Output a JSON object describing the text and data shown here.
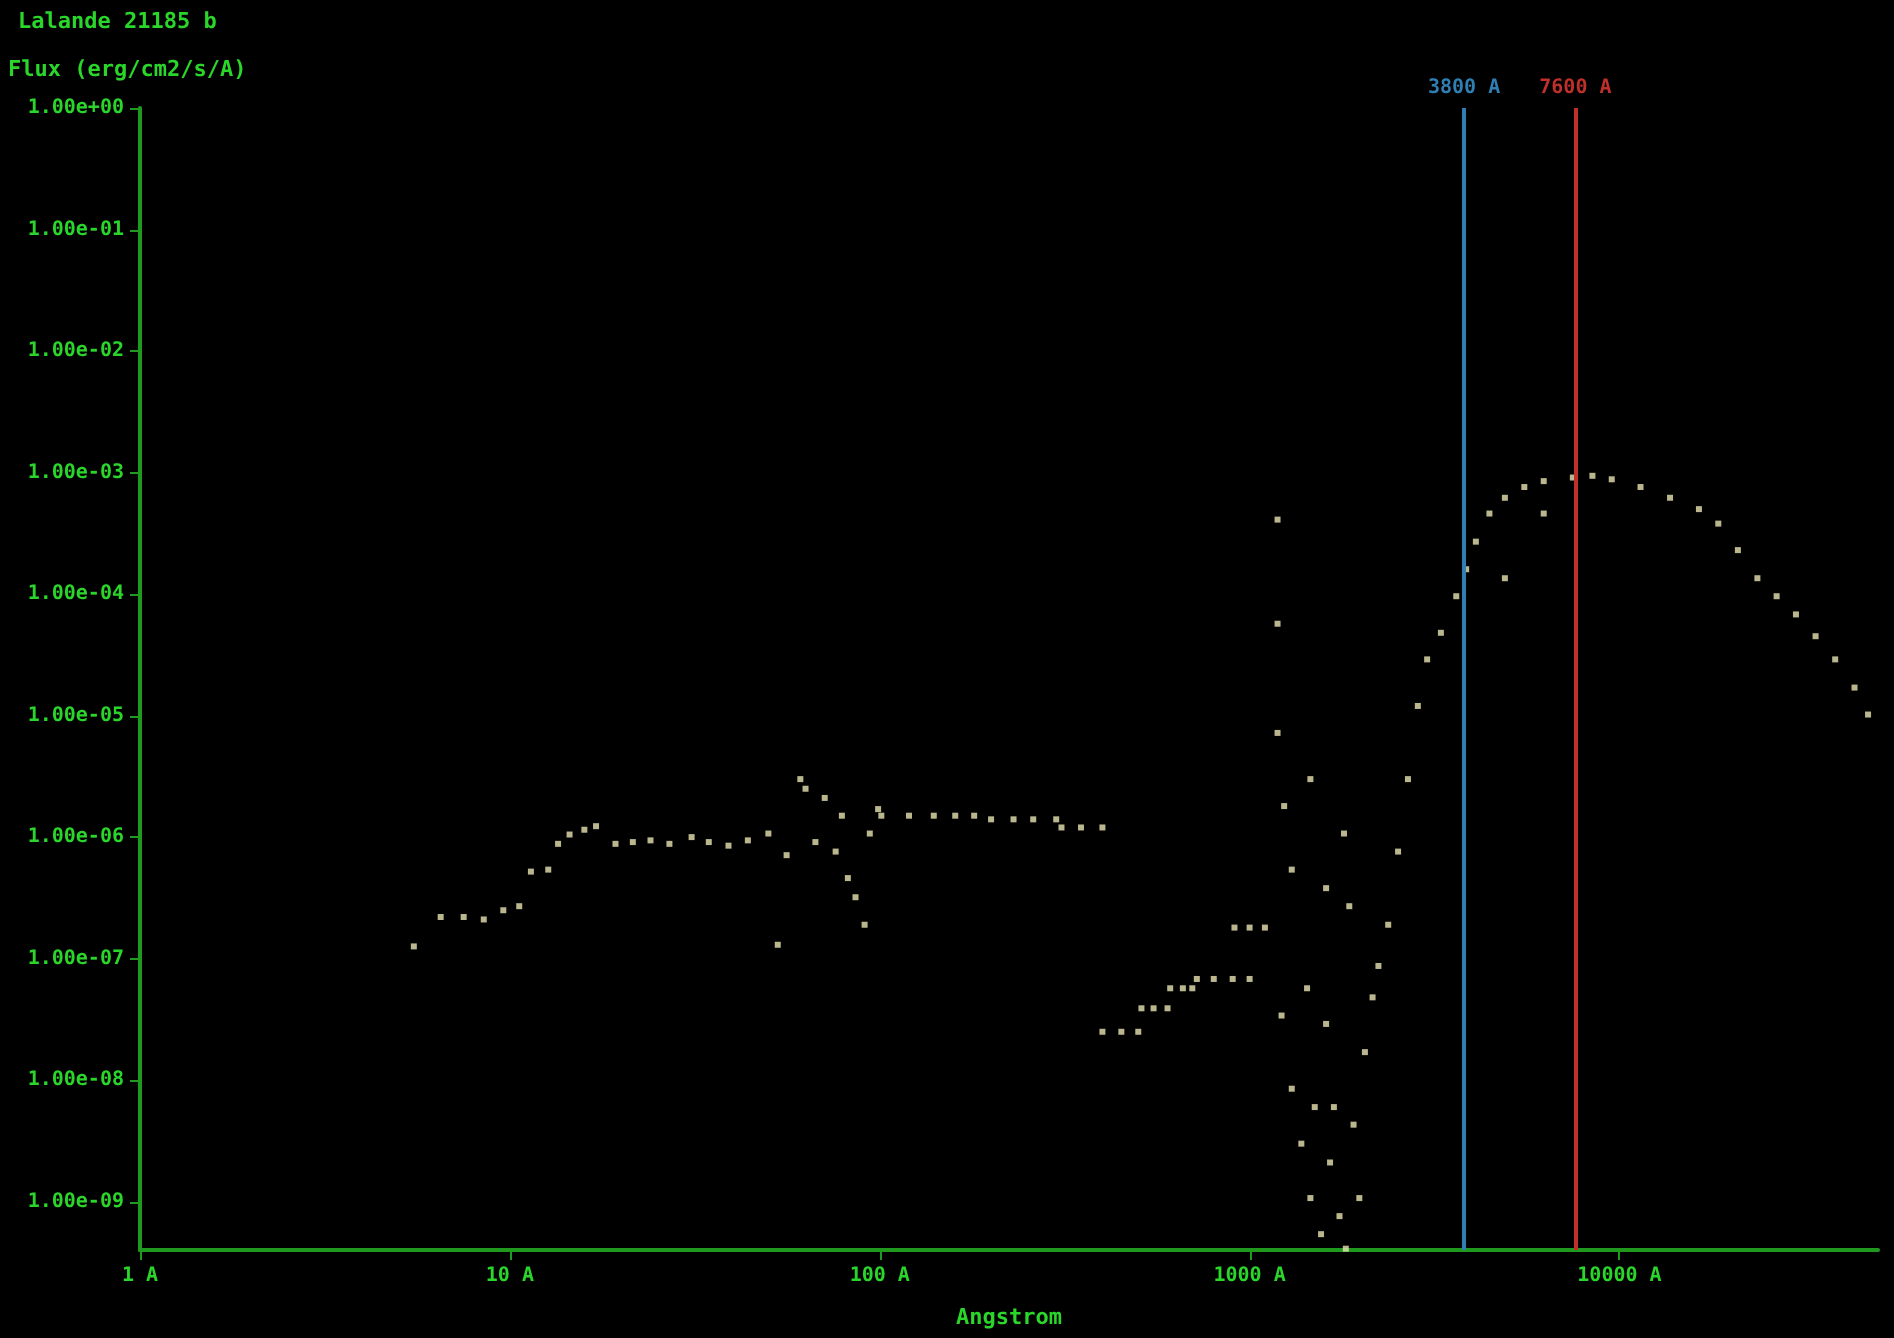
{
  "chart_data": {
    "type": "scatter",
    "title": "Lalande 21185 b",
    "ylabel": "Flux (erg/cm2/s/A)",
    "xlabel": "Angstrom",
    "log": "xy",
    "grid": false,
    "marker": "square",
    "xlim": [
      1,
      50000
    ],
    "ylim": [
      4e-10,
      1
    ],
    "xticks": [
      {
        "value": 1,
        "label": "1 A"
      },
      {
        "value": 10,
        "label": "10 A"
      },
      {
        "value": 100,
        "label": "100 A"
      },
      {
        "value": 1000,
        "label": "1000 A"
      },
      {
        "value": 10000,
        "label": "10000 A"
      }
    ],
    "yticks": [
      {
        "value": 1e-09,
        "label": "1.00e-09"
      },
      {
        "value": 1e-08,
        "label": "1.00e-08"
      },
      {
        "value": 1e-07,
        "label": "1.00e-07"
      },
      {
        "value": 1e-06,
        "label": "1.00e-06"
      },
      {
        "value": 1e-05,
        "label": "1.00e-05"
      },
      {
        "value": 0.0001,
        "label": "1.00e-04"
      },
      {
        "value": 0.001,
        "label": "1.00e-03"
      },
      {
        "value": 0.01,
        "label": "1.00e-02"
      },
      {
        "value": 0.1,
        "label": "1.00e-01"
      },
      {
        "value": 1,
        "label": "1.00e+00"
      }
    ],
    "ref_lines": [
      {
        "axis": "x",
        "value": 3800,
        "label": "3800 A",
        "color": "#2f7fb5"
      },
      {
        "axis": "x",
        "value": 7600,
        "label": "7600 A",
        "color": "#c0302b"
      }
    ],
    "series": [
      {
        "color": "#e8e4b0",
        "x": [
          5.5,
          6.5,
          7.5,
          8.5,
          9.6,
          10.6,
          11.4,
          12.7,
          13.5,
          14.5,
          15.9,
          17.1,
          19.3,
          21.5,
          24,
          27,
          31,
          34.5,
          39,
          44,
          50,
          53,
          56,
          61,
          63,
          71,
          67,
          76,
          79,
          82,
          86,
          91,
          94,
          99,
          101,
          120,
          140,
          160,
          180,
          200,
          230,
          260,
          300,
          310,
          350,
          400,
          400,
          450,
          500,
          510,
          550,
          600,
          610,
          660,
          700,
          720,
          800,
          900,
          1000,
          910,
          1000,
          1100,
          1190,
          1190,
          1190,
          1240,
          1300,
          1460,
          1610,
          1800,
          1860,
          1220,
          1300,
          1380,
          1460,
          1560,
          1650,
          1750,
          1820,
          1910,
          2050,
          2150,
          1430,
          1610,
          1690,
          1980,
          1500,
          2230,
          2370,
          2520,
          2680,
          2850,
          3020,
          3290,
          3620,
          3850,
          4090,
          4450,
          4900,
          5530,
          6240,
          7480,
          8450,
          9530,
          11400,
          13700,
          16400,
          18500,
          20900,
          23600,
          26600,
          30000,
          33900,
          38300,
          43200,
          47000,
          6240,
          4900
        ],
        "values": [
          1.26e-07,
          2.2e-07,
          2.2e-07,
          2.1e-07,
          2.5e-07,
          2.7e-07,
          5.2e-07,
          5.4e-07,
          8.8e-07,
          1.05e-06,
          1.15e-06,
          1.23e-06,
          8.8e-07,
          9.1e-07,
          9.4e-07,
          8.8e-07,
          1e-06,
          9.1e-07,
          8.5e-07,
          9.4e-07,
          1.07e-06,
          1.3e-07,
          7.1e-07,
          3e-06,
          2.5e-06,
          2.1e-06,
          9.1e-07,
          7.6e-07,
          1.5e-06,
          4.6e-07,
          3.2e-07,
          1.9e-07,
          1.07e-06,
          1.7e-06,
          1.5e-06,
          1.5e-06,
          1.5e-06,
          1.5e-06,
          1.5e-06,
          1.4e-06,
          1.4e-06,
          1.4e-06,
          1.4e-06,
          1.2e-06,
          1.2e-06,
          1.2e-06,
          2.5e-08,
          2.5e-08,
          2.5e-08,
          3.9e-08,
          3.9e-08,
          3.9e-08,
          5.7e-08,
          5.7e-08,
          5.7e-08,
          6.8e-08,
          6.8e-08,
          6.8e-08,
          6.8e-08,
          1.8e-07,
          1.8e-07,
          1.8e-07,
          0.00041,
          5.7e-05,
          7.2e-06,
          1.8e-06,
          5.4e-07,
          3e-06,
          3.8e-07,
          1.07e-06,
          2.7e-07,
          3.4e-08,
          8.5e-09,
          3e-09,
          1.07e-09,
          5.4e-10,
          2.1e-09,
          7.6e-10,
          4.1e-10,
          4.3e-09,
          1.7e-08,
          4.8e-08,
          5.7e-08,
          2.9e-08,
          6e-09,
          1.07e-09,
          6e-09,
          8.7e-08,
          1.9e-07,
          7.6e-07,
          3e-06,
          1.2e-05,
          2.9e-05,
          4.8e-05,
          9.6e-05,
          0.00016,
          0.00027,
          0.00046,
          0.00062,
          0.00076,
          0.00085,
          0.00091,
          0.00094,
          0.00088,
          0.00076,
          0.00062,
          0.0005,
          0.00038,
          0.00023,
          0.000135,
          9.6e-05,
          6.8e-05,
          4.5e-05,
          2.9e-05,
          1.7e-05,
          1.02e-05,
          0.00046,
          0.000135
        ]
      }
    ]
  }
}
